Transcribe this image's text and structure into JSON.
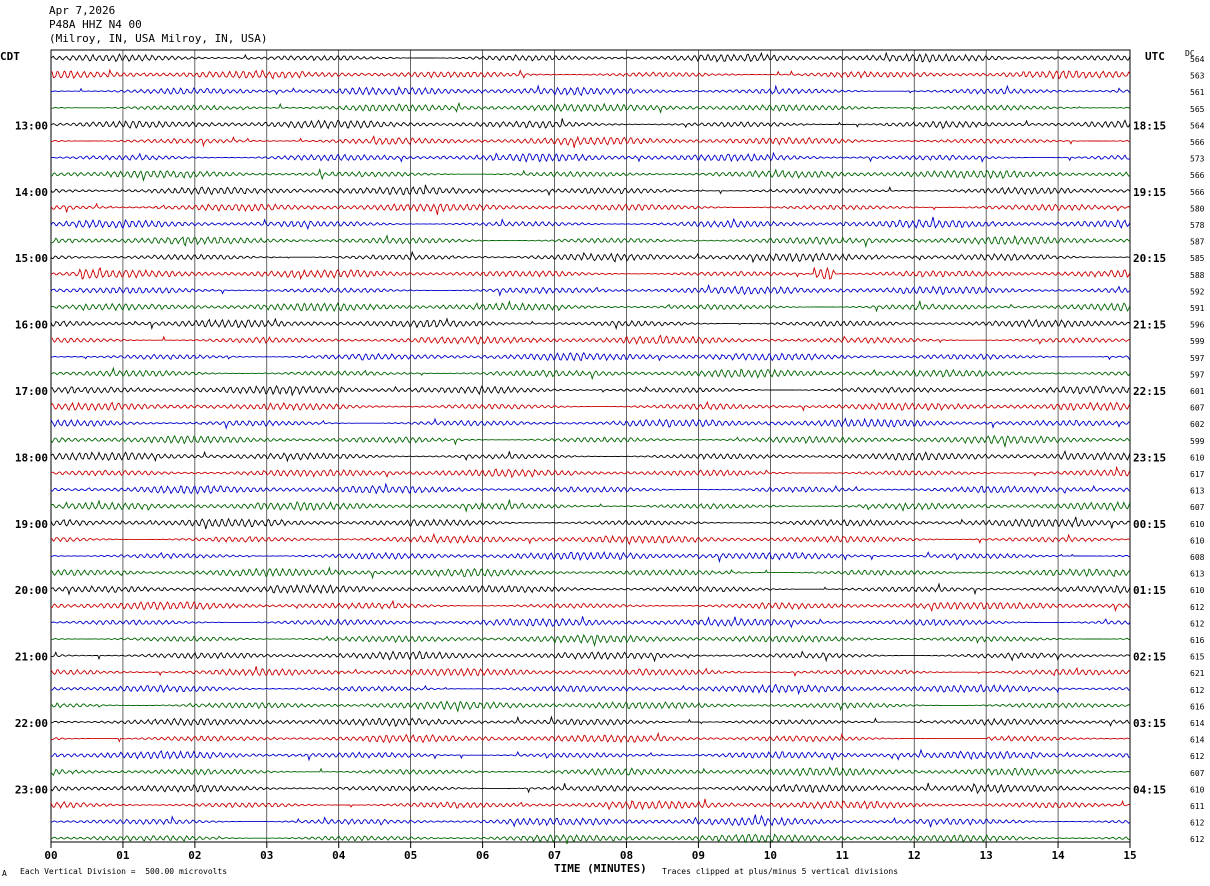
{
  "header": {
    "date": "Apr 7,2026",
    "station": "P48A HHZ N4 00",
    "location": "(Milroy, IN, USA Milroy, IN, USA)"
  },
  "left_zone": "CDT",
  "right_zone": "UTC",
  "dc_label": "DC",
  "footer": {
    "mark": "A",
    "scale_note": "Each Vertical Division =  500.00 microvolts",
    "clip_note": "Traces clipped at plus/minus 5 vertical divisions"
  },
  "colors": [
    "#000000",
    "#cc0000",
    "#0000cc",
    "#006600"
  ],
  "chart_data": {
    "type": "line",
    "xlabel": "TIME (MINUTES)",
    "x_ticks": [
      "00",
      "01",
      "02",
      "03",
      "04",
      "05",
      "06",
      "07",
      "08",
      "09",
      "10",
      "11",
      "12",
      "13",
      "14",
      "15"
    ],
    "xlim": [
      0,
      15
    ],
    "grid": true,
    "left_hour_labels": [
      "13:00",
      "14:00",
      "15:00",
      "16:00",
      "17:00",
      "18:00",
      "19:00",
      "20:00",
      "21:00",
      "22:00",
      "23:00"
    ],
    "right_hour_labels": [
      "18:15",
      "19:15",
      "20:15",
      "21:15",
      "22:15",
      "23:15",
      "00:15",
      "01:15",
      "02:15",
      "03:15",
      "04:15"
    ],
    "dc_offsets": [
      564,
      563,
      561,
      565,
      564,
      566,
      573,
      566,
      566,
      580,
      578,
      587,
      585,
      588,
      592,
      591,
      596,
      599,
      597,
      597,
      601,
      607,
      602,
      599,
      610,
      617,
      613,
      607,
      610,
      610,
      608,
      613,
      610,
      612,
      612,
      616,
      615,
      621,
      612,
      616,
      614,
      614,
      612,
      607,
      610,
      611,
      612,
      612
    ],
    "events": [
      {
        "trace": 13,
        "x_min": [
          0.4,
          0.7
        ],
        "note": "burst"
      },
      {
        "trace": 13,
        "x_min": [
          10.6,
          10.9
        ],
        "note": "burst"
      },
      {
        "trace": 41,
        "x_min": [
          12.2,
          13.0
        ],
        "note": "flat"
      }
    ]
  }
}
